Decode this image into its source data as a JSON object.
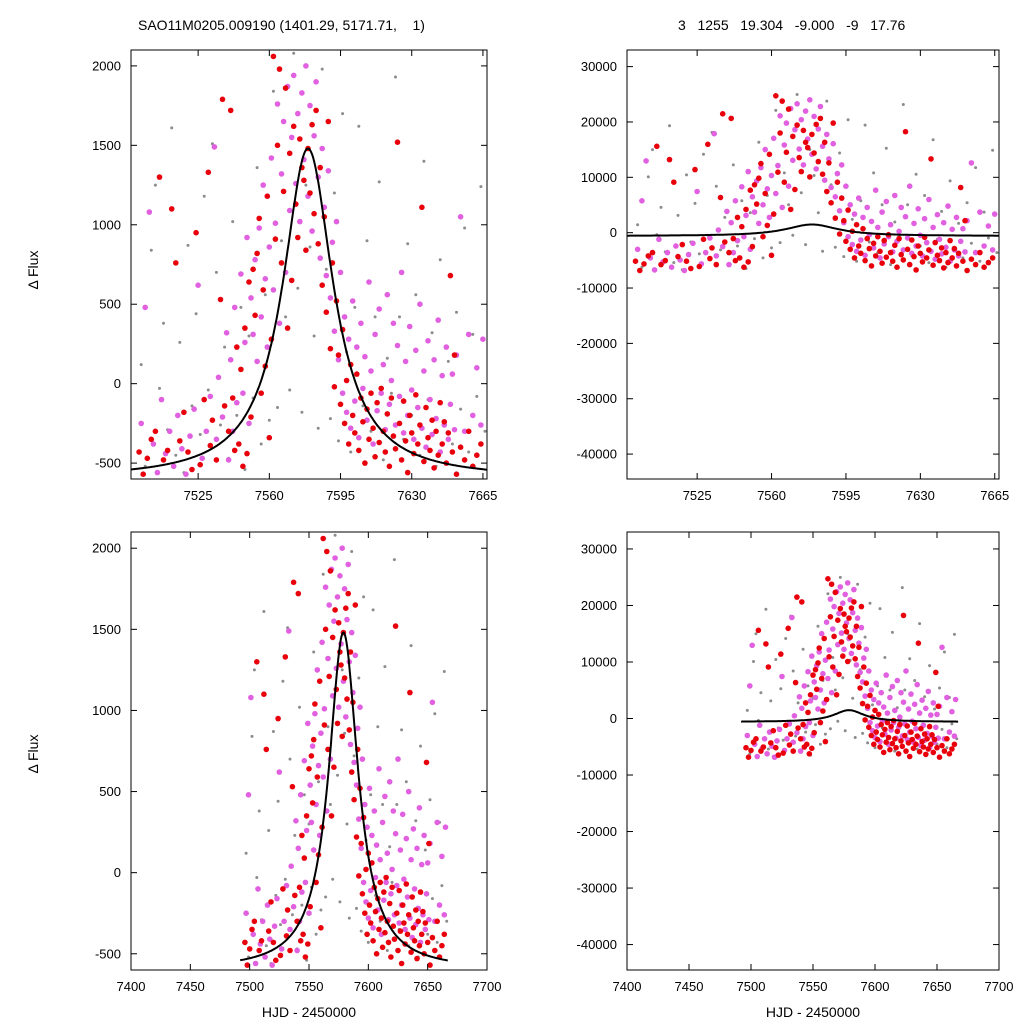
{
  "header": {
    "left_title": "SAO11M0205.009190 (1401.29, 5171.71,    1)",
    "right_title": "3   1255   19.304   -9.000   -9   17.76"
  },
  "colors": {
    "red": "#e8000b",
    "magenta": "#e060e0",
    "gray": "#8c8c8c",
    "fit": "#000000"
  },
  "chart_data": [
    {
      "id": "top-left",
      "type": "scatter",
      "title": "SAO11M0205.009190 (1401.29, 5171.71,    1)",
      "xlabel": "",
      "ylabel": "Δ Flux",
      "xlim": [
        7492,
        7667
      ],
      "ylim": [
        -600,
        2100
      ],
      "xticks": [
        7525,
        7560,
        7595,
        7630,
        7665
      ],
      "yticks": [
        -500,
        0,
        500,
        1000,
        1500,
        2000
      ],
      "fit": {
        "t0": 7579,
        "amp": 2080,
        "width": 15,
        "base": -600
      }
    },
    {
      "id": "top-right",
      "type": "scatter",
      "title": "3   1255   19.304   -9.000   -9   17.76",
      "xlabel": "",
      "ylabel": "",
      "xlim": [
        7492,
        7667
      ],
      "ylim": [
        -44500,
        33000
      ],
      "xticks": [
        7525,
        7560,
        7595,
        7630,
        7665
      ],
      "yticks": [
        -40000,
        -30000,
        -20000,
        -10000,
        0,
        10000,
        20000,
        30000
      ],
      "fit": {
        "t0": 7579,
        "amp": 2080,
        "width": 15,
        "base": -600
      }
    },
    {
      "id": "bottom-left",
      "type": "scatter",
      "xlabel": "HJD - 2450000",
      "ylabel": "Δ Flux",
      "xlim": [
        7400,
        7700
      ],
      "ylim": [
        -600,
        2100
      ],
      "xticks": [
        7400,
        7450,
        7500,
        7550,
        7600,
        7650,
        7700
      ],
      "yticks": [
        -500,
        0,
        500,
        1000,
        1500,
        2000
      ],
      "fit": {
        "t0": 7579,
        "amp": 2080,
        "width": 15,
        "base": -600
      }
    },
    {
      "id": "bottom-right",
      "type": "scatter",
      "xlabel": "HJD - 2450000",
      "ylabel": "",
      "xlim": [
        7400,
        7700
      ],
      "ylim": [
        -44500,
        33000
      ],
      "xticks": [
        7400,
        7450,
        7500,
        7550,
        7600,
        7650,
        7700
      ],
      "yticks": [
        -40000,
        -30000,
        -20000,
        -10000,
        0,
        10000,
        20000,
        30000
      ],
      "fit": {
        "t0": 7579,
        "amp": 2080,
        "width": 15,
        "base": -600
      }
    }
  ],
  "observations": {
    "red": [
      [
        7496,
        -430
      ],
      [
        7498,
        -570
      ],
      [
        7500,
        -470
      ],
      [
        7502,
        -350
      ],
      [
        7504,
        -300
      ],
      [
        7506,
        1300
      ],
      [
        7508,
        -480
      ],
      [
        7510,
        -420
      ],
      [
        7512,
        1100
      ],
      [
        7514,
        760
      ],
      [
        7516,
        -360
      ],
      [
        7518,
        -180
      ],
      [
        7520,
        -430
      ],
      [
        7522,
        -540
      ],
      [
        7524,
        950
      ],
      [
        7526,
        -510
      ],
      [
        7528,
        -100
      ],
      [
        7530,
        1330
      ],
      [
        7531,
        -390
      ],
      [
        7532,
        -230
      ],
      [
        7534,
        -480
      ],
      [
        7536,
        530
      ],
      [
        7537,
        1790
      ],
      [
        7538,
        -140
      ],
      [
        7540,
        -300
      ],
      [
        7541,
        1720
      ],
      [
        7542,
        -90
      ],
      [
        7543,
        -420
      ],
      [
        7544,
        230
      ],
      [
        7545,
        -380
      ],
      [
        7546,
        90
      ],
      [
        7547,
        -520
      ],
      [
        7548,
        350
      ],
      [
        7549,
        -440
      ],
      [
        7550,
        640
      ],
      [
        7551,
        -210
      ],
      [
        7552,
        720
      ],
      [
        7553,
        430
      ],
      [
        7554,
        820
      ],
      [
        7555,
        1040
      ],
      [
        7556,
        -60
      ],
      [
        7557,
        590
      ],
      [
        7558,
        110
      ],
      [
        7559,
        1180
      ],
      [
        7560,
        -340
      ],
      [
        7561,
        280
      ],
      [
        7562,
        2060
      ],
      [
        7563,
        910
      ],
      [
        7564,
        1500
      ],
      [
        7565,
        1980
      ],
      [
        7566,
        760
      ],
      [
        7567,
        1210
      ],
      [
        7568,
        1860
      ],
      [
        7569,
        350
      ],
      [
        7570,
        1450
      ],
      [
        7571,
        650
      ],
      [
        7572,
        1620
      ],
      [
        7573,
        1130
      ],
      [
        7574,
        920
      ],
      [
        7575,
        1540
      ],
      [
        7576,
        1360
      ],
      [
        7577,
        1280
      ],
      [
        7578,
        840
      ],
      [
        7579,
        1480
      ],
      [
        7580,
        1200
      ],
      [
        7581,
        1630
      ],
      [
        7582,
        1070
      ],
      [
        7583,
        1720
      ],
      [
        7584,
        880
      ],
      [
        7585,
        1360
      ],
      [
        7586,
        620
      ],
      [
        7587,
        1050
      ],
      [
        7588,
        450
      ],
      [
        7589,
        1650
      ],
      [
        7590,
        220
      ],
      [
        7591,
        760
      ],
      [
        7592,
        -20
      ],
      [
        7593,
        520
      ],
      [
        7594,
        180
      ],
      [
        7595,
        -130
      ],
      [
        7596,
        340
      ],
      [
        7597,
        -250
      ],
      [
        7598,
        20
      ],
      [
        7599,
        -380
      ],
      [
        7600,
        120
      ],
      [
        7601,
        -200
      ],
      [
        7602,
        -310
      ],
      [
        7603,
        60
      ],
      [
        7604,
        -420
      ],
      [
        7605,
        -90
      ],
      [
        7606,
        -240
      ],
      [
        7607,
        -500
      ],
      [
        7608,
        -160
      ],
      [
        7609,
        -350
      ],
      [
        7610,
        -60
      ],
      [
        7611,
        -280
      ],
      [
        7612,
        -460
      ],
      [
        7613,
        -120
      ],
      [
        7614,
        -370
      ],
      [
        7615,
        -30
      ],
      [
        7616,
        -300
      ],
      [
        7617,
        -430
      ],
      [
        7618,
        -190
      ],
      [
        7619,
        -520
      ],
      [
        7620,
        -90
      ],
      [
        7621,
        -330
      ],
      [
        7622,
        -410
      ],
      [
        7623,
        1520
      ],
      [
        7624,
        -250
      ],
      [
        7625,
        -480
      ],
      [
        7626,
        -110
      ],
      [
        7627,
        -360
      ],
      [
        7628,
        -560
      ],
      [
        7629,
        -200
      ],
      [
        7630,
        -310
      ],
      [
        7631,
        -440
      ],
      [
        7632,
        -70
      ],
      [
        7633,
        -380
      ],
      [
        7634,
        -260
      ],
      [
        7635,
        1110
      ],
      [
        7636,
        -490
      ],
      [
        7637,
        -150
      ],
      [
        7638,
        -340
      ],
      [
        7639,
        -420
      ],
      [
        7640,
        -230
      ],
      [
        7641,
        -530
      ],
      [
        7642,
        -300
      ],
      [
        7643,
        -450
      ],
      [
        7644,
        -120
      ],
      [
        7645,
        -380
      ],
      [
        7646,
        -240
      ],
      [
        7647,
        -500
      ],
      [
        7648,
        -310
      ],
      [
        7649,
        680
      ],
      [
        7650,
        -430
      ],
      [
        7651,
        180
      ],
      [
        7652,
        -570
      ],
      [
        7654,
        -400
      ],
      [
        7656,
        -480
      ],
      [
        7658,
        -300
      ],
      [
        7660,
        -520
      ],
      [
        7662,
        -450
      ],
      [
        7664,
        -380
      ]
    ],
    "magenta": [
      [
        7497,
        -250
      ],
      [
        7499,
        480
      ],
      [
        7501,
        1080
      ],
      [
        7503,
        -380
      ],
      [
        7505,
        -560
      ],
      [
        7507,
        -100
      ],
      [
        7509,
        -440
      ],
      [
        7511,
        -300
      ],
      [
        7513,
        -520
      ],
      [
        7515,
        -200
      ],
      [
        7517,
        -410
      ],
      [
        7519,
        -570
      ],
      [
        7521,
        -330
      ],
      [
        7523,
        -160
      ],
      [
        7525,
        620
      ],
      [
        7527,
        -470
      ],
      [
        7529,
        -300
      ],
      [
        7531,
        -80
      ],
      [
        7533,
        1490
      ],
      [
        7534,
        -350
      ],
      [
        7535,
        40
      ],
      [
        7537,
        -210
      ],
      [
        7539,
        320
      ],
      [
        7540,
        -480
      ],
      [
        7541,
        150
      ],
      [
        7542,
        -300
      ],
      [
        7543,
        480
      ],
      [
        7544,
        -120
      ],
      [
        7546,
        690
      ],
      [
        7547,
        -60
      ],
      [
        7548,
        260
      ],
      [
        7549,
        920
      ],
      [
        7550,
        -250
      ],
      [
        7551,
        540
      ],
      [
        7552,
        310
      ],
      [
        7553,
        780
      ],
      [
        7554,
        140
      ],
      [
        7555,
        980
      ],
      [
        7556,
        420
      ],
      [
        7557,
        1250
      ],
      [
        7558,
        660
      ],
      [
        7559,
        230
      ],
      [
        7560,
        860
      ],
      [
        7561,
        1420
      ],
      [
        7562,
        590
      ],
      [
        7563,
        1010
      ],
      [
        7564,
        1760
      ],
      [
        7565,
        380
      ],
      [
        7566,
        1320
      ],
      [
        7567,
        1650
      ],
      [
        7568,
        700
      ],
      [
        7569,
        1870
      ],
      [
        7570,
        1090
      ],
      [
        7571,
        1550
      ],
      [
        7572,
        1940
      ],
      [
        7573,
        1260
      ],
      [
        7574,
        1700
      ],
      [
        7575,
        1020
      ],
      [
        7576,
        1830
      ],
      [
        7577,
        1410
      ],
      [
        7578,
        2000
      ],
      [
        7579,
        1180
      ],
      [
        7580,
        1750
      ],
      [
        7581,
        960
      ],
      [
        7582,
        1560
      ],
      [
        7583,
        1900
      ],
      [
        7584,
        1300
      ],
      [
        7585,
        790
      ],
      [
        7586,
        1480
      ],
      [
        7587,
        1110
      ],
      [
        7588,
        680
      ],
      [
        7589,
        1340
      ],
      [
        7590,
        540
      ],
      [
        7591,
        890
      ],
      [
        7592,
        330
      ],
      [
        7593,
        1020
      ],
      [
        7594,
        150
      ],
      [
        7595,
        700
      ],
      [
        7596,
        -60
      ],
      [
        7597,
        420
      ],
      [
        7598,
        -180
      ],
      [
        7599,
        280
      ],
      [
        7600,
        -280
      ],
      [
        7601,
        520
      ],
      [
        7602,
        -110
      ],
      [
        7603,
        230
      ],
      [
        7604,
        -340
      ],
      [
        7605,
        380
      ],
      [
        7606,
        -30
      ],
      [
        7607,
        170
      ],
      [
        7608,
        -230
      ],
      [
        7609,
        640
      ],
      [
        7610,
        80
      ],
      [
        7611,
        -380
      ],
      [
        7612,
        310
      ],
      [
        7613,
        -170
      ],
      [
        7614,
        470
      ],
      [
        7615,
        -60
      ],
      [
        7616,
        120
      ],
      [
        7617,
        -290
      ],
      [
        7618,
        560
      ],
      [
        7619,
        -130
      ],
      [
        7620,
        20
      ],
      [
        7621,
        380
      ],
      [
        7622,
        -260
      ],
      [
        7623,
        240
      ],
      [
        7624,
        -80
      ],
      [
        7625,
        700
      ],
      [
        7626,
        -310
      ],
      [
        7627,
        140
      ],
      [
        7628,
        -200
      ],
      [
        7629,
        360
      ],
      [
        7630,
        -40
      ],
      [
        7631,
        -350
      ],
      [
        7632,
        210
      ],
      [
        7633,
        -150
      ],
      [
        7634,
        500
      ],
      [
        7635,
        -280
      ],
      [
        7636,
        80
      ],
      [
        7637,
        -400
      ],
      [
        7638,
        270
      ],
      [
        7639,
        -100
      ],
      [
        7640,
        -320
      ],
      [
        7641,
        150
      ],
      [
        7642,
        -220
      ],
      [
        7643,
        400
      ],
      [
        7644,
        -430
      ],
      [
        7645,
        50
      ],
      [
        7646,
        -260
      ],
      [
        7647,
        230
      ],
      [
        7648,
        -350
      ],
      [
        7649,
        -130
      ],
      [
        7650,
        60
      ],
      [
        7651,
        -290
      ],
      [
        7652,
        180
      ],
      [
        7654,
        1050
      ],
      [
        7656,
        -300
      ],
      [
        7658,
        310
      ],
      [
        7660,
        -200
      ],
      [
        7662,
        100
      ],
      [
        7664,
        -260
      ],
      [
        7665,
        280
      ]
    ],
    "gray": [
      [
        7497,
        120
      ],
      [
        7499,
        -520
      ],
      [
        7502,
        840
      ],
      [
        7504,
        1250
      ],
      [
        7506,
        -30
      ],
      [
        7508,
        380
      ],
      [
        7510,
        -290
      ],
      [
        7512,
        1610
      ],
      [
        7514,
        -450
      ],
      [
        7516,
        260
      ],
      [
        7518,
        -560
      ],
      [
        7520,
        870
      ],
      [
        7522,
        -140
      ],
      [
        7524,
        440
      ],
      [
        7526,
        -320
      ],
      [
        7528,
        1180
      ],
      [
        7530,
        -40
      ],
      [
        7532,
        1510
      ],
      [
        7534,
        700
      ],
      [
        7536,
        -260
      ],
      [
        7538,
        230
      ],
      [
        7540,
        -470
      ],
      [
        7542,
        1020
      ],
      [
        7544,
        -200
      ],
      [
        7546,
        480
      ],
      [
        7548,
        -540
      ],
      [
        7550,
        300
      ],
      [
        7552,
        -90
      ],
      [
        7554,
        1360
      ],
      [
        7556,
        -380
      ],
      [
        7558,
        560
      ],
      [
        7560,
        -230
      ],
      [
        7562,
        1840
      ],
      [
        7564,
        -150
      ],
      [
        7566,
        900
      ],
      [
        7568,
        420
      ],
      [
        7570,
        -40
      ],
      [
        7572,
        2080
      ],
      [
        7574,
        600
      ],
      [
        7576,
        -180
      ],
      [
        7578,
        1250
      ],
      [
        7580,
        860
      ],
      [
        7582,
        300
      ],
      [
        7584,
        -280
      ],
      [
        7586,
        1980
      ],
      [
        7588,
        720
      ],
      [
        7590,
        -220
      ],
      [
        7592,
        1200
      ],
      [
        7594,
        -360
      ],
      [
        7596,
        1700
      ],
      [
        7598,
        200
      ],
      [
        7600,
        -430
      ],
      [
        7602,
        480
      ],
      [
        7604,
        1620
      ],
      [
        7606,
        -140
      ],
      [
        7608,
        900
      ],
      [
        7610,
        -300
      ],
      [
        7612,
        420
      ],
      [
        7614,
        1270
      ],
      [
        7616,
        -480
      ],
      [
        7618,
        160
      ],
      [
        7620,
        -60
      ],
      [
        7622,
        1930
      ],
      [
        7624,
        420
      ],
      [
        7626,
        -350
      ],
      [
        7628,
        880
      ],
      [
        7630,
        -200
      ],
      [
        7632,
        560
      ],
      [
        7634,
        -450
      ],
      [
        7636,
        1400
      ],
      [
        7638,
        -100
      ],
      [
        7640,
        320
      ],
      [
        7642,
        -520
      ],
      [
        7644,
        780
      ],
      [
        7646,
        -260
      ],
      [
        7648,
        140
      ],
      [
        7650,
        -380
      ],
      [
        7652,
        450
      ],
      [
        7654,
        -160
      ],
      [
        7656,
        980
      ],
      [
        7658,
        -430
      ],
      [
        7660,
        310
      ],
      [
        7662,
        -80
      ],
      [
        7664,
        1240
      ],
      [
        7666,
        -300
      ]
    ]
  }
}
